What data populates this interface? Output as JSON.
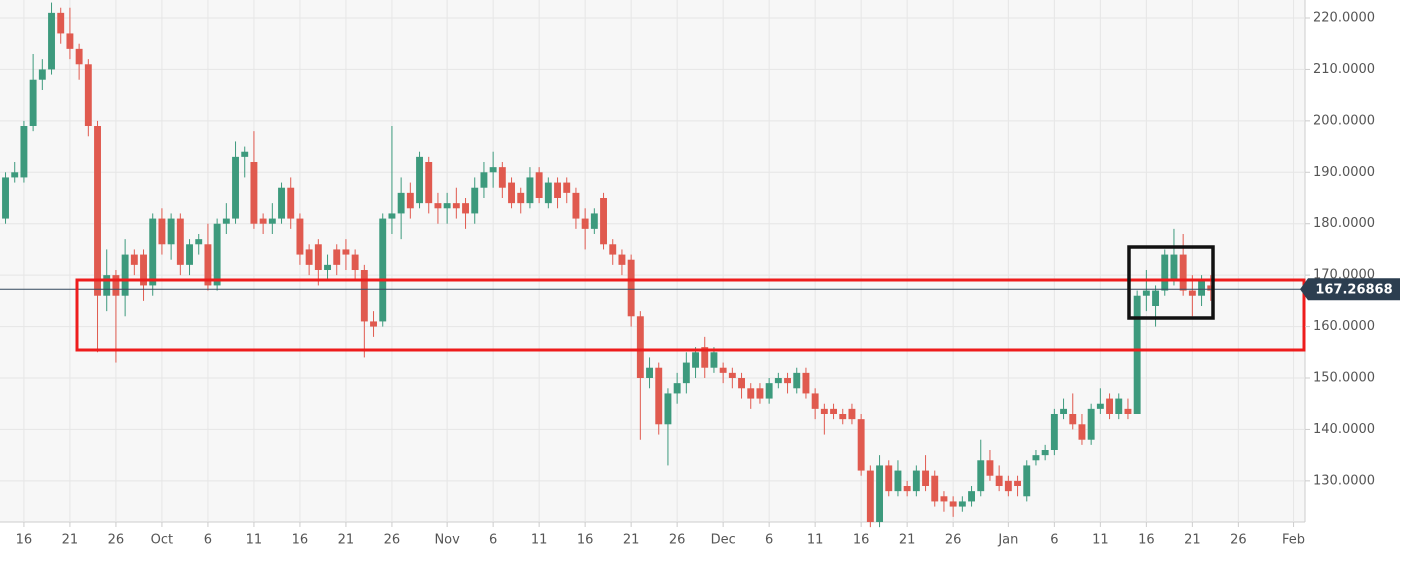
{
  "chart_data": {
    "type": "candlestick",
    "x": [
      14,
      15,
      16,
      17,
      18,
      19,
      20,
      21,
      22,
      23,
      24,
      25,
      26,
      27,
      28,
      29,
      30,
      31,
      32,
      33,
      34,
      35,
      36,
      37,
      38,
      39,
      40,
      41,
      42,
      43,
      44,
      45,
      46,
      47,
      48,
      49,
      50,
      51,
      52,
      53,
      54,
      55,
      56,
      57,
      58,
      59,
      60,
      61,
      62,
      63,
      64,
      65,
      66,
      67,
      68,
      69,
      70,
      71,
      72,
      73,
      74,
      75,
      76,
      77,
      78,
      79,
      80,
      81,
      82,
      83,
      84,
      85,
      86,
      87,
      88,
      89,
      90,
      91,
      92,
      93,
      94,
      95,
      96,
      97,
      98,
      99,
      100,
      101,
      102,
      103,
      104,
      105,
      106,
      107,
      108,
      109,
      110,
      111,
      112,
      113,
      114,
      115,
      116,
      117,
      118,
      119,
      120,
      121,
      122,
      123,
      124,
      125,
      126,
      127,
      128,
      129,
      130,
      131,
      132,
      133,
      134,
      135,
      136,
      137,
      138,
      139,
      140,
      141,
      142,
      143,
      144,
      145
    ],
    "open": [
      181,
      189,
      189,
      199,
      208,
      210,
      221,
      217,
      214,
      211,
      199,
      166,
      170,
      166,
      174,
      174,
      168,
      181,
      176,
      181,
      172,
      176,
      176,
      168,
      180,
      181,
      193,
      192,
      181,
      180,
      181,
      187,
      181,
      175,
      176,
      171,
      175,
      175,
      174,
      171,
      161,
      161,
      181,
      182,
      186,
      184,
      192,
      184,
      183,
      184,
      184,
      182,
      187,
      190,
      191,
      188,
      186,
      184,
      190,
      184,
      188,
      188,
      186,
      181,
      179,
      185,
      176,
      174,
      173,
      162,
      150,
      152,
      141,
      147,
      149,
      152,
      156,
      152,
      152,
      151,
      150,
      148,
      148,
      146,
      149,
      150,
      148,
      151,
      147,
      144,
      144,
      143,
      144,
      142,
      132,
      122,
      133,
      128,
      129,
      128,
      132,
      131,
      127,
      126,
      125,
      126,
      128,
      134,
      131,
      130,
      130,
      127,
      134,
      135,
      136,
      143,
      143,
      141,
      138,
      144,
      146,
      143,
      144,
      143,
      166,
      164,
      167,
      169,
      174,
      167,
      166,
      168
    ],
    "high": [
      190,
      192,
      200,
      213,
      212,
      223,
      222,
      222,
      215,
      212,
      200,
      175,
      171,
      177,
      175,
      175,
      182,
      183,
      182,
      182,
      177,
      178,
      180,
      181,
      184,
      196,
      195,
      198,
      182,
      184,
      188,
      189,
      182,
      176,
      177,
      174,
      176,
      177,
      175,
      172,
      163,
      182,
      199,
      189,
      188,
      194,
      193,
      186,
      186,
      187,
      185,
      189,
      192,
      194,
      192,
      189,
      187,
      191,
      191,
      189,
      189,
      189,
      187,
      183,
      183,
      186,
      177,
      175,
      174,
      163,
      154,
      153,
      148,
      151,
      155,
      156,
      158,
      156,
      153,
      152,
      151,
      149,
      149,
      150,
      151,
      151,
      152,
      152,
      148,
      145,
      145,
      144,
      145,
      143,
      133,
      135,
      134,
      134,
      130,
      133,
      135,
      132,
      128,
      127,
      127,
      129,
      138,
      136,
      133,
      131,
      131,
      134,
      136,
      137,
      144,
      146,
      147,
      143,
      145,
      148,
      147,
      147,
      146,
      167,
      171,
      168,
      175,
      179,
      178,
      170,
      170,
      170
    ],
    "low": [
      180,
      188,
      188,
      198,
      206,
      209,
      215,
      212,
      208,
      197,
      155,
      163,
      153,
      162,
      170,
      165,
      166,
      174,
      173,
      170,
      170,
      174,
      167,
      167,
      178,
      180,
      189,
      179,
      178,
      178,
      180,
      179,
      172,
      170,
      168,
      169,
      170,
      171,
      169,
      154,
      158,
      160,
      178,
      177,
      181,
      183,
      182,
      180,
      180,
      181,
      179,
      180,
      185,
      187,
      185,
      183,
      182,
      183,
      184,
      183,
      183,
      184,
      179,
      175,
      178,
      175,
      172,
      170,
      160,
      138,
      148,
      139,
      133,
      145,
      147,
      150,
      150,
      151,
      149,
      148,
      146,
      144,
      145,
      145,
      148,
      147,
      147,
      146,
      142,
      139,
      142,
      141,
      141,
      131,
      121,
      121,
      127,
      127,
      127,
      127,
      128,
      125,
      124,
      123,
      124,
      125,
      127,
      130,
      128,
      127,
      127,
      126,
      133,
      134,
      135,
      142,
      140,
      137,
      137,
      143,
      142,
      142,
      142,
      143,
      163,
      160,
      166,
      168,
      166,
      162,
      164,
      165
    ],
    "close": [
      189,
      190,
      199,
      208,
      210,
      221,
      217,
      214,
      211,
      199,
      166,
      170,
      166,
      174,
      172,
      168,
      181,
      176,
      181,
      172,
      176,
      177,
      168,
      180,
      181,
      193,
      194,
      180,
      180,
      181,
      187,
      181,
      174,
      172,
      171,
      172,
      172,
      174,
      171,
      161,
      160,
      181,
      182,
      186,
      183,
      193,
      184,
      183,
      184,
      183,
      182,
      187,
      190,
      191,
      187,
      184,
      184,
      189,
      185,
      188,
      185,
      186,
      181,
      179,
      182,
      176,
      174,
      172,
      162,
      150,
      152,
      141,
      147,
      149,
      153,
      155,
      152,
      155,
      151,
      150,
      148,
      146,
      146,
      149,
      150,
      149,
      151,
      147,
      144,
      143,
      143,
      142,
      142,
      132,
      122,
      133,
      128,
      132,
      128,
      132,
      129,
      126,
      126,
      125,
      126,
      128,
      134,
      131,
      129,
      128,
      129,
      133,
      135,
      136,
      143,
      144,
      141,
      138,
      144,
      145,
      143,
      146,
      143,
      166,
      167,
      167,
      174,
      174,
      167,
      166,
      169,
      167
    ],
    "up_color": "#3d9a7d",
    "down_color": "#e05a4f",
    "last_price": 167.26868,
    "xlim": [
      13.4,
      154.7
    ],
    "ylim": [
      122,
      223.5
    ],
    "xticks": [
      16,
      21,
      26,
      {
        "value": 31,
        "label": "Oct"
      },
      {
        "value": 36,
        "label": "6"
      },
      {
        "value": 41,
        "label": "11"
      },
      {
        "value": 46,
        "label": "16"
      },
      {
        "value": 51,
        "label": "21"
      },
      {
        "value": 56,
        "label": "26"
      },
      {
        "value": 62,
        "label": "Nov"
      },
      {
        "value": 67,
        "label": "6"
      },
      {
        "value": 72,
        "label": "11"
      },
      {
        "value": 77,
        "label": "16"
      },
      {
        "value": 82,
        "label": "21"
      },
      {
        "value": 87,
        "label": "26"
      },
      {
        "value": 92,
        "label": "Dec"
      },
      {
        "value": 97,
        "label": "6"
      },
      {
        "value": 102,
        "label": "11"
      },
      {
        "value": 107,
        "label": "16"
      },
      {
        "value": 112,
        "label": "21"
      },
      {
        "value": 117,
        "label": "26"
      },
      {
        "value": 123,
        "label": "Jan"
      },
      {
        "value": 128,
        "label": "6"
      },
      {
        "value": 133,
        "label": "11"
      },
      {
        "value": 138,
        "label": "16"
      },
      {
        "value": 143,
        "label": "21"
      },
      {
        "value": 148,
        "label": "26"
      },
      {
        "value": 154,
        "label": "Feb"
      }
    ],
    "yticks": [
      {
        "value": 130,
        "label": "130.0000"
      },
      {
        "value": 140,
        "label": "140.0000"
      },
      {
        "value": 150,
        "label": "150.0000"
      },
      {
        "value": 160,
        "label": "160.0000"
      },
      {
        "value": 170,
        "label": "170.0000"
      },
      {
        "value": 180,
        "label": "180.0000"
      },
      {
        "value": 190,
        "label": "190.0000"
      },
      {
        "value": 200,
        "label": "200.0000"
      },
      {
        "value": 210,
        "label": "210.0000"
      },
      {
        "value": 220,
        "label": "220.0000"
      }
    ],
    "grid": true
  }
}
